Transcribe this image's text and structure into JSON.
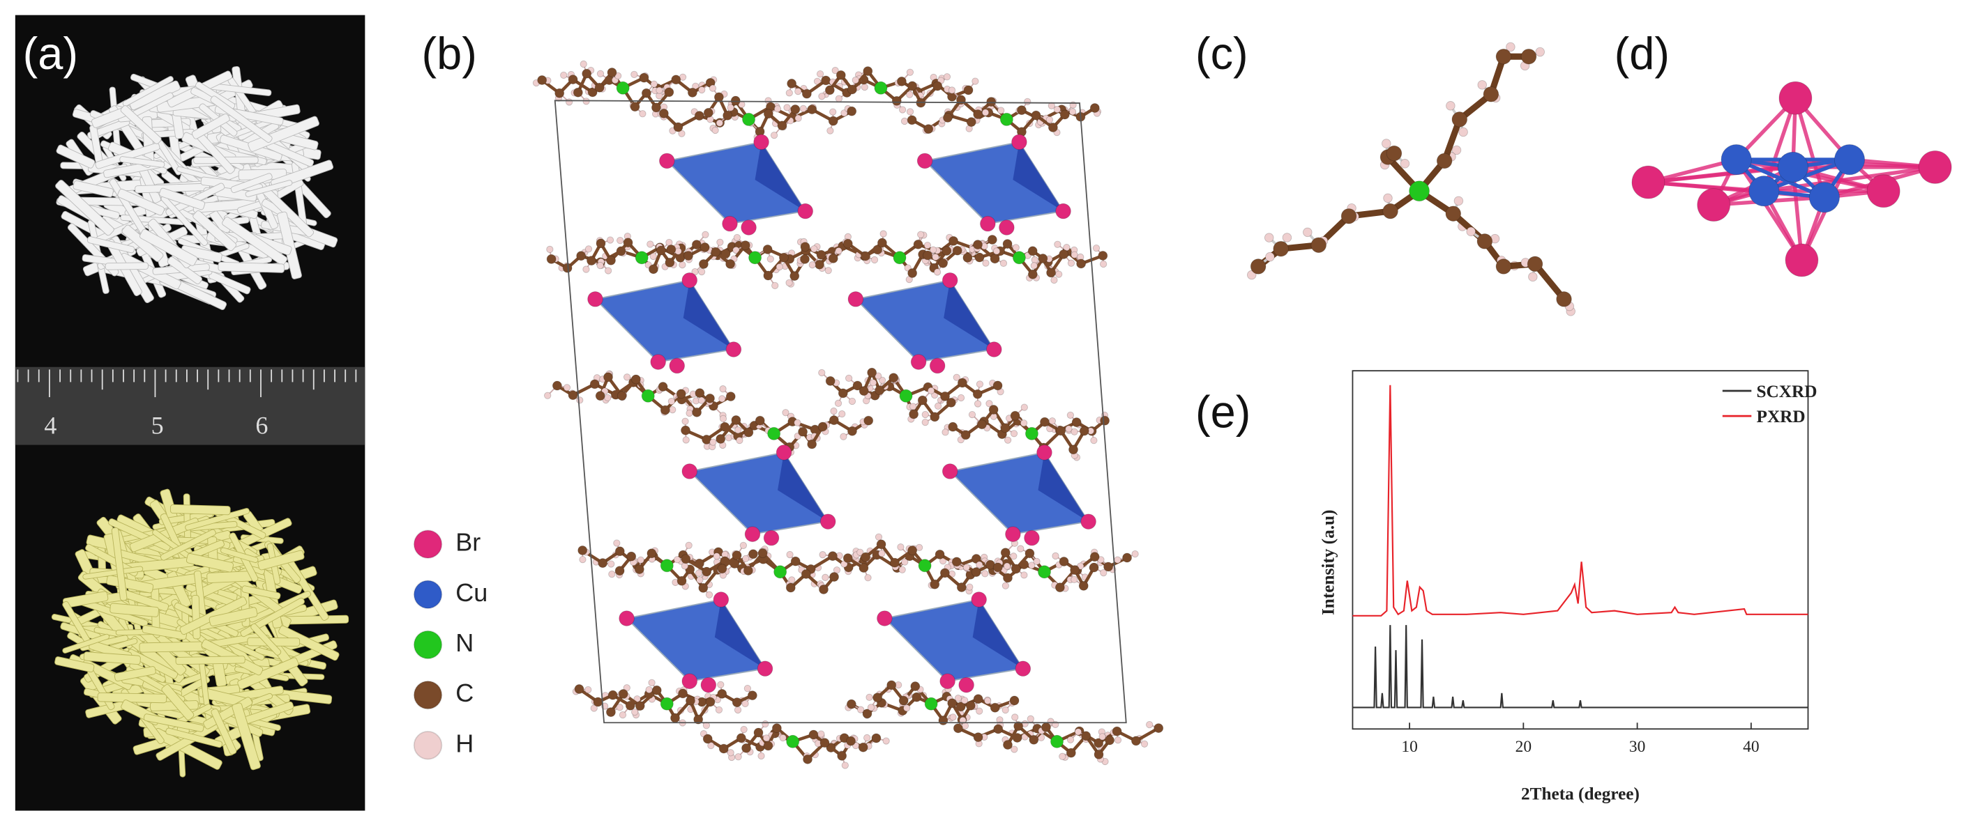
{
  "panel_labels": {
    "a": "(a)",
    "b": "(b)",
    "c": "(c)",
    "d": "(d)",
    "e": "(e)"
  },
  "ruler_labels": [
    "4",
    "5",
    "6"
  ],
  "legend": [
    {
      "label": "Br",
      "color": "#e0287a"
    },
    {
      "label": "Cu",
      "color": "#2f5bc8"
    },
    {
      "label": "N",
      "color": "#22c61e"
    },
    {
      "label": "C",
      "color": "#7a4a2a"
    },
    {
      "label": "H",
      "color": "#efcfcf"
    }
  ],
  "chart_data": {
    "type": "line",
    "xlabel": "2Theta (degree)",
    "ylabel": "Intensity  (a.u)",
    "xlim": [
      5,
      45
    ],
    "xticks": [
      10,
      20,
      30,
      40
    ],
    "ylim": [
      0,
      100
    ],
    "series": [
      {
        "name": "SCXRD",
        "color": "#333333",
        "x": [
          5,
          6.9,
          7.0,
          7.1,
          7.5,
          7.6,
          7.7,
          8.2,
          8.3,
          8.4,
          8.7,
          8.8,
          8.9,
          9.6,
          9.7,
          9.8,
          11.0,
          11.1,
          11.2,
          12.0,
          12.1,
          12.2,
          13.7,
          13.8,
          13.9,
          14.6,
          14.7,
          14.8,
          18.0,
          18.1,
          18.2,
          22.5,
          22.6,
          22.7,
          24.9,
          25.0,
          25.1,
          45
        ],
        "values": [
          6,
          6,
          23,
          6,
          6,
          10,
          6,
          6,
          29,
          6,
          6,
          22,
          6,
          6,
          29,
          6,
          6,
          25,
          6,
          6,
          9,
          6,
          6,
          9,
          6,
          6,
          8,
          6,
          6,
          10,
          6,
          6,
          8,
          6,
          6,
          8,
          6,
          6
        ]
      },
      {
        "name": "PXRD",
        "color": "#e8232a",
        "x": [
          5,
          7.5,
          8.0,
          8.3,
          8.6,
          9.0,
          9.5,
          9.8,
          10.2,
          10.6,
          10.9,
          11.2,
          11.5,
          12,
          15,
          18,
          20,
          23,
          24.2,
          24.5,
          24.8,
          25.1,
          25.5,
          26,
          28,
          30,
          33,
          33.3,
          33.6,
          35,
          39.4,
          39.6,
          42,
          45
        ],
        "values": [
          31.6,
          31.6,
          33,
          96,
          34,
          32,
          33,
          41.4,
          33,
          34,
          39.6,
          38.6,
          33,
          32,
          32,
          32.5,
          32,
          33,
          38,
          40.3,
          35,
          46.7,
          34,
          32.5,
          33,
          32,
          32.5,
          34,
          32.5,
          32,
          33.5,
          32,
          32,
          32
        ]
      }
    ],
    "legend": "upper right"
  }
}
